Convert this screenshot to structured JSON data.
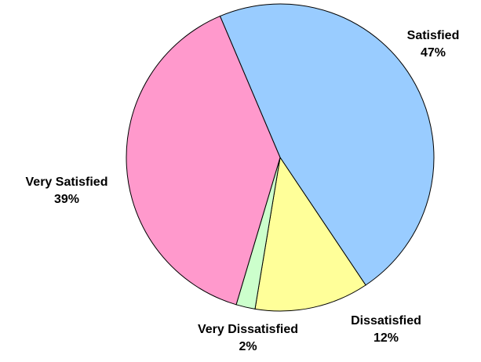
{
  "chart_data": {
    "type": "pie",
    "title": "",
    "start_angle_deg": -23,
    "direction": "clockwise",
    "slices": [
      {
        "label": "Satisfied",
        "value": 47,
        "value_label": "47%",
        "color": "#99ccff"
      },
      {
        "label": "Dissatisfied",
        "value": 12,
        "value_label": "12%",
        "color": "#ffff99"
      },
      {
        "label": "Very Dissatisfied",
        "value": 2,
        "value_label": "2%",
        "color": "#ccffcc"
      },
      {
        "label": "Very Satisfied",
        "value": 39,
        "value_label": "39%",
        "color": "#ff99cc"
      }
    ],
    "legend": "none",
    "slice_border_color": "#000000"
  }
}
